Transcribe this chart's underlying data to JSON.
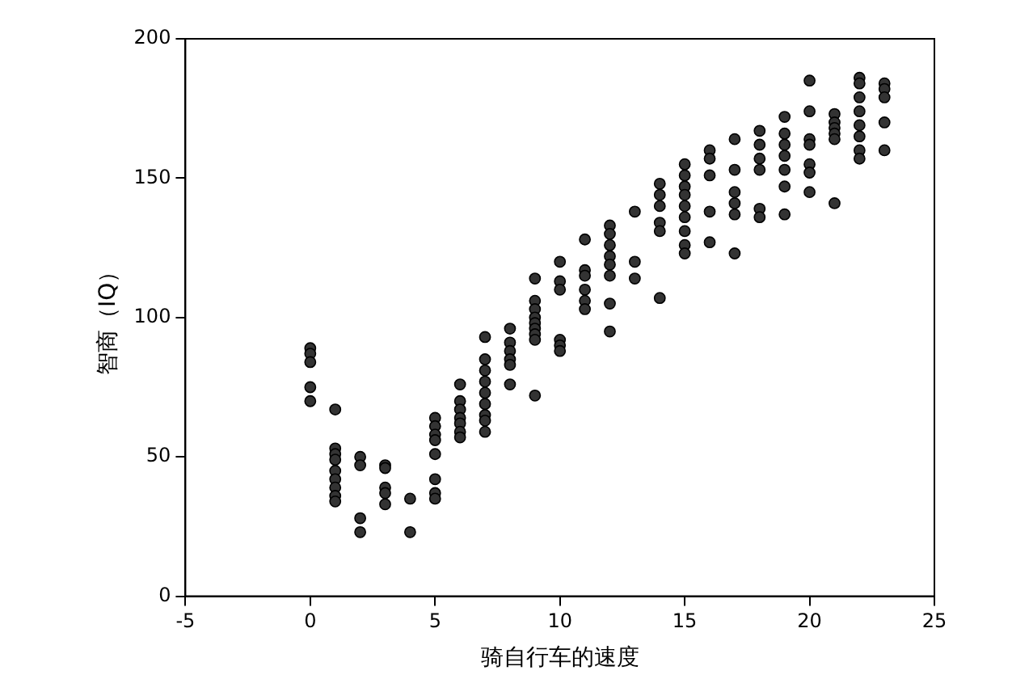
{
  "chart_data": {
    "type": "scatter",
    "xlabel": "骑自行车的速度",
    "ylabel": "智商（IQ）",
    "xlim": [
      -5,
      25
    ],
    "xticks": [
      -5,
      0,
      5,
      10,
      15,
      20,
      25
    ],
    "ylim": [
      0,
      200
    ],
    "yticks": [
      0,
      50,
      100,
      150,
      200
    ],
    "grid": false,
    "legend": false,
    "marker": "circle",
    "series": [
      {
        "color": "#333333",
        "x": [
          0,
          0,
          0,
          0,
          0,
          1,
          1,
          1,
          1,
          1,
          1,
          1,
          1,
          1,
          2,
          2,
          2,
          2,
          3,
          3,
          3,
          3,
          3,
          4,
          4,
          5,
          5,
          5,
          5,
          5,
          5,
          5,
          5,
          6,
          6,
          6,
          6,
          6,
          6,
          6,
          7,
          7,
          7,
          7,
          7,
          7,
          7,
          7,
          7,
          8,
          8,
          8,
          8,
          8,
          8,
          9,
          9,
          9,
          9,
          9,
          9,
          9,
          9,
          9,
          10,
          10,
          10,
          10,
          10,
          10,
          11,
          11,
          11,
          11,
          11,
          11,
          12,
          12,
          12,
          12,
          12,
          12,
          12,
          12,
          13,
          13,
          13,
          14,
          14,
          14,
          14,
          14,
          14,
          15,
          15,
          15,
          15,
          15,
          15,
          15,
          15,
          15,
          16,
          16,
          16,
          16,
          16,
          17,
          17,
          17,
          17,
          17,
          17,
          18,
          18,
          18,
          18,
          18,
          18,
          19,
          19,
          19,
          19,
          19,
          19,
          19,
          20,
          20,
          20,
          20,
          20,
          20,
          20,
          21,
          21,
          21,
          21,
          21,
          21,
          22,
          22,
          22,
          22,
          22,
          22,
          22,
          22,
          23,
          23,
          23,
          23,
          23
        ],
        "values": [
          89,
          87,
          84,
          75,
          70,
          67,
          53,
          51,
          49,
          45,
          42,
          39,
          36,
          34,
          50,
          47,
          28,
          23,
          47,
          46,
          39,
          37,
          33,
          35,
          23,
          64,
          61,
          58,
          56,
          51,
          42,
          37,
          35,
          76,
          70,
          67,
          64,
          62,
          59,
          57,
          93,
          85,
          81,
          77,
          73,
          69,
          65,
          63,
          59,
          96,
          91,
          88,
          85,
          83,
          76,
          114,
          106,
          103,
          100,
          98,
          96,
          94,
          92,
          72,
          120,
          113,
          110,
          92,
          90,
          88,
          128,
          117,
          115,
          110,
          106,
          103,
          133,
          130,
          126,
          122,
          119,
          115,
          105,
          95,
          138,
          120,
          114,
          148,
          144,
          140,
          134,
          131,
          107,
          155,
          151,
          147,
          144,
          140,
          136,
          131,
          126,
          123,
          160,
          157,
          151,
          138,
          127,
          164,
          153,
          145,
          141,
          137,
          123,
          167,
          162,
          157,
          153,
          139,
          136,
          172,
          166,
          162,
          158,
          153,
          147,
          137,
          185,
          174,
          164,
          162,
          155,
          152,
          145,
          173,
          170,
          168,
          166,
          164,
          141,
          186,
          184,
          179,
          174,
          169,
          165,
          160,
          157,
          184,
          182,
          179,
          170,
          160
        ]
      }
    ]
  }
}
